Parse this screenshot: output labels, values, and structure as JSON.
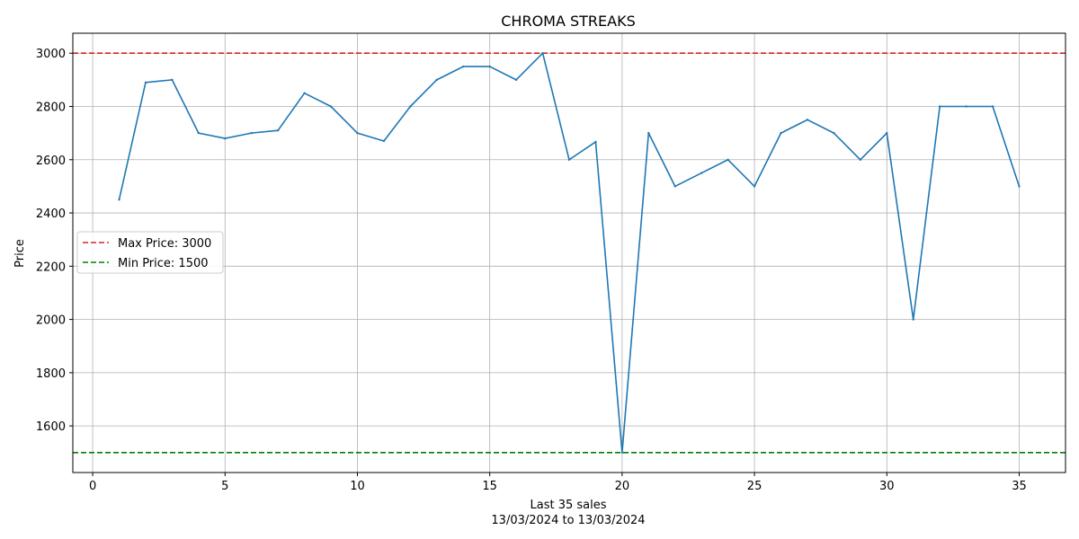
{
  "chart_data": {
    "type": "line",
    "title": "CHROMA STREAKS",
    "xlabel": "Last 35 sales",
    "xlabel_sub": "13/03/2024 to 13/03/2024",
    "ylabel": "Price",
    "xlim": [
      -0.75,
      36.75
    ],
    "ylim": [
      1425,
      3075
    ],
    "x_ticks": [
      0,
      5,
      10,
      15,
      20,
      25,
      30,
      35
    ],
    "y_ticks": [
      1600,
      1800,
      2000,
      2200,
      2400,
      2600,
      2800,
      3000
    ],
    "grid": true,
    "legend_placement": "center-left",
    "series": [
      {
        "color": "#1f77b4",
        "x": [
          1,
          2,
          3,
          4,
          5,
          6,
          7,
          8,
          9,
          10,
          11,
          12,
          13,
          14,
          15,
          16,
          17,
          18,
          19,
          20,
          21,
          22,
          23,
          24,
          25,
          26,
          27,
          28,
          29,
          30,
          31,
          32,
          33,
          34,
          35
        ],
        "values": [
          2450,
          2890,
          2900,
          2700,
          2680,
          2700,
          2710,
          2850,
          2800,
          2700,
          2670,
          2800,
          2900,
          2950,
          2950,
          2900,
          3000,
          2600,
          2667,
          1500,
          2700,
          2500,
          2550,
          2600,
          2500,
          2700,
          2750,
          2700,
          2600,
          2700,
          2000,
          2800,
          2800,
          2800,
          2500
        ]
      }
    ],
    "reference_lines": [
      {
        "label": "Max Price: 3000",
        "value": 3000,
        "color": "#d62728"
      },
      {
        "label": "Min Price: 1500",
        "value": 1500,
        "color": "#008000"
      }
    ]
  }
}
